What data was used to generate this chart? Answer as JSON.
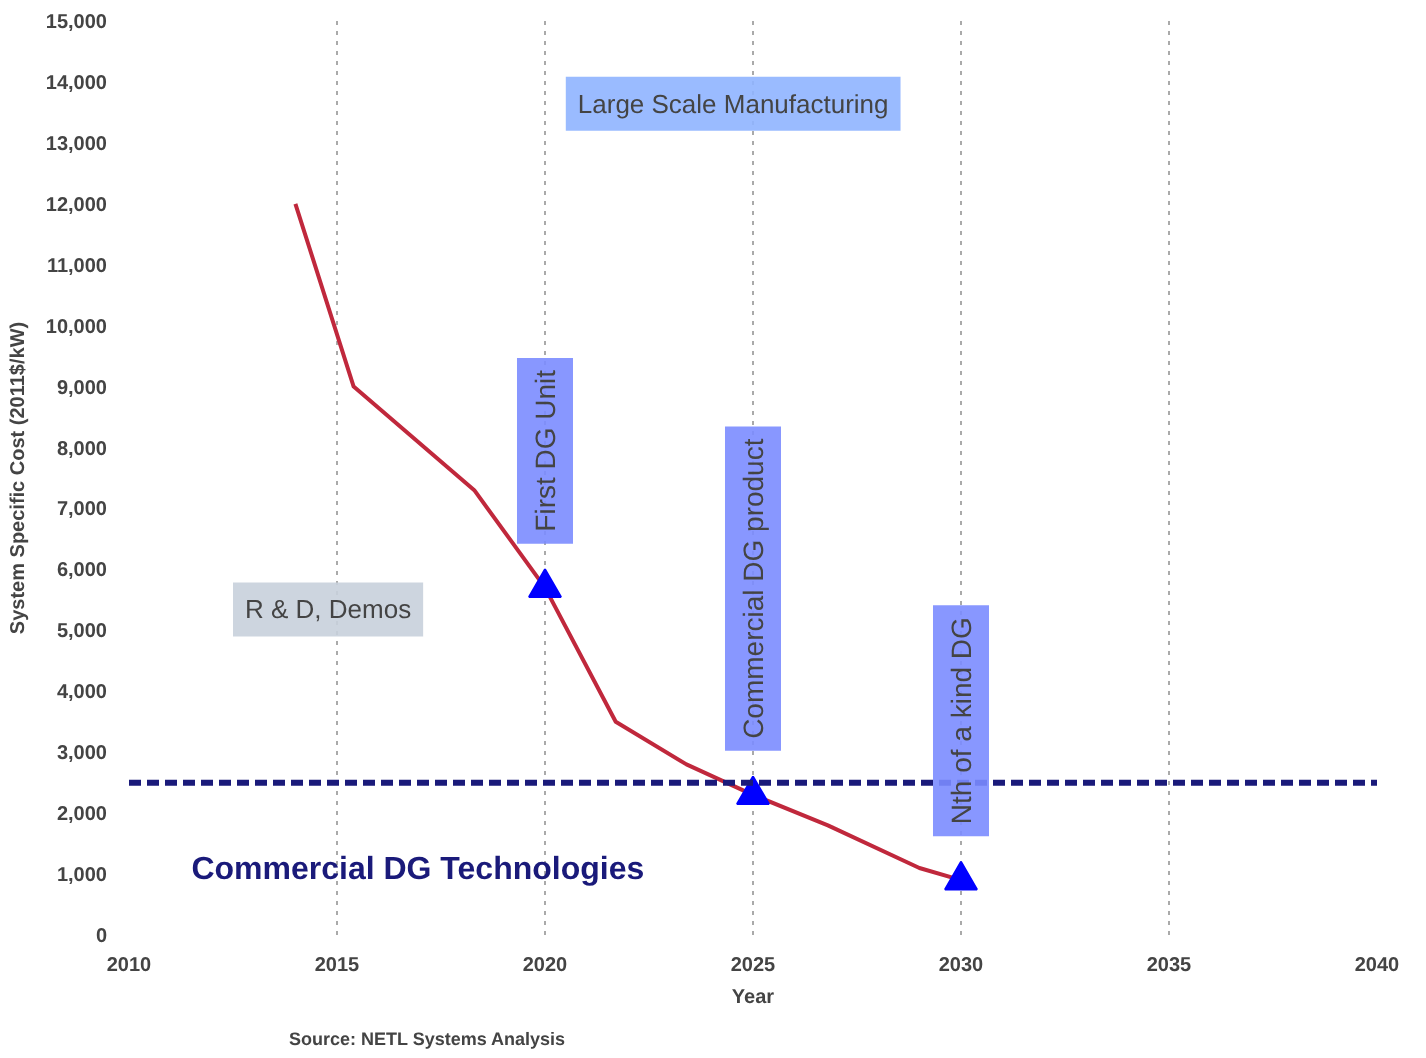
{
  "chart_data": {
    "type": "line",
    "xlabel": "Year",
    "ylabel": "System Specific Cost (2011$/kW)",
    "series": [
      {
        "color": "#c0283c",
        "x": [
          2014,
          2015.4,
          2018.3,
          2020,
          2021.7,
          2023.4,
          2025,
          2026.8,
          2029,
          2030
        ],
        "values": [
          12000,
          9000,
          7300,
          5700,
          3500,
          2800,
          2300,
          1800,
          1100,
          900
        ]
      },
      {
        "type": "scatter",
        "color": "#0000ff",
        "marker": "triangle",
        "x": [
          2020,
          2025,
          2030
        ],
        "values": [
          5700,
          2300,
          900
        ]
      }
    ],
    "xlim": [
      2010,
      2040
    ],
    "xticks": [
      2010,
      2015,
      2020,
      2025,
      2030,
      2035,
      2040
    ],
    "ylim": [
      0,
      15000
    ],
    "yticks": [
      0,
      {
        "value": 1000,
        "label": "1,000"
      },
      {
        "value": 2000,
        "label": "2,000"
      },
      {
        "value": 3000,
        "label": "3,000"
      },
      {
        "value": 4000,
        "label": "4,000"
      },
      {
        "value": 5000,
        "label": "5,000"
      },
      {
        "value": 6000,
        "label": "6,000"
      },
      {
        "value": 7000,
        "label": "7,000"
      },
      {
        "value": 8000,
        "label": "8,000"
      },
      {
        "value": 9000,
        "label": "9,000"
      },
      {
        "value": 10000,
        "label": "10,000"
      },
      {
        "value": 11000,
        "label": "11,000"
      },
      {
        "value": 12000,
        "label": "12,000"
      },
      {
        "value": 13000,
        "label": "13,000"
      },
      {
        "value": 14000,
        "label": "14,000"
      },
      {
        "value": 15000,
        "label": "15,000"
      }
    ],
    "ref_lines": [
      {
        "axis": "y",
        "value": 2500,
        "label": "Commercial DG Technologies",
        "color": "#1a1a7a",
        "line_style": "dashed"
      }
    ],
    "annotations": [
      {
        "text": "First DG Unit",
        "x": 2020,
        "y": 5700
      },
      {
        "text": "Commercial DG product",
        "x": 2025,
        "y": 2300
      },
      {
        "text": "Nth of a kind DG",
        "x": 2030,
        "y": 900
      },
      "Large Scale Manufacturing",
      "R & D, Demos",
      "Source:  NETL Systems Analysis"
    ],
    "grid": "x"
  }
}
